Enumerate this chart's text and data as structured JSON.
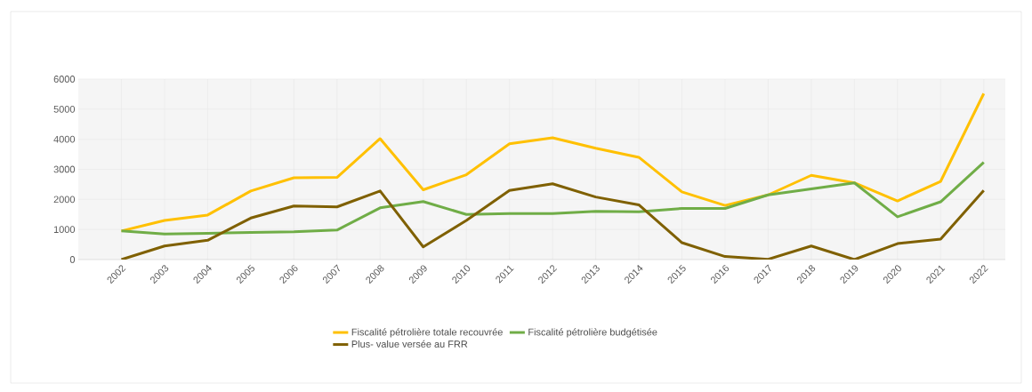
{
  "chart_data": {
    "type": "line",
    "categories": [
      "2002",
      "2003",
      "2004",
      "2005",
      "2006",
      "2007",
      "2008",
      "2009",
      "2010",
      "2011",
      "2012",
      "2013",
      "2014",
      "2015",
      "2016",
      "2017",
      "2018",
      "2019",
      "2020",
      "2021",
      "2022"
    ],
    "series": [
      {
        "name": "Fiscalité pétrolière totale recouvrée",
        "color": "#ffc000",
        "values": [
          950,
          1300,
          1480,
          2280,
          2720,
          2730,
          4020,
          2320,
          2820,
          3850,
          4050,
          3700,
          3400,
          2250,
          1800,
          2150,
          2800,
          2550,
          1950,
          2600,
          5520
        ]
      },
      {
        "name": "Fiscalité pétrolière budgétisée",
        "color": "#70ad47",
        "values": [
          950,
          850,
          870,
          900,
          920,
          980,
          1720,
          1930,
          1500,
          1530,
          1530,
          1600,
          1590,
          1700,
          1700,
          2150,
          2350,
          2550,
          1420,
          1920,
          3230
        ]
      },
      {
        "name": "Plus- value versée au FRR",
        "color": "#7f6000",
        "values": [
          0,
          450,
          640,
          1380,
          1780,
          1750,
          2280,
          420,
          1300,
          2300,
          2520,
          2080,
          1820,
          560,
          100,
          10,
          450,
          0,
          530,
          680,
          2300
        ]
      }
    ],
    "ylim": [
      0,
      6000
    ],
    "yticks": [
      0,
      1000,
      2000,
      3000,
      4000,
      5000,
      6000
    ],
    "grid": true,
    "legend": "bottom",
    "marker": "none",
    "line_style": "solid"
  }
}
